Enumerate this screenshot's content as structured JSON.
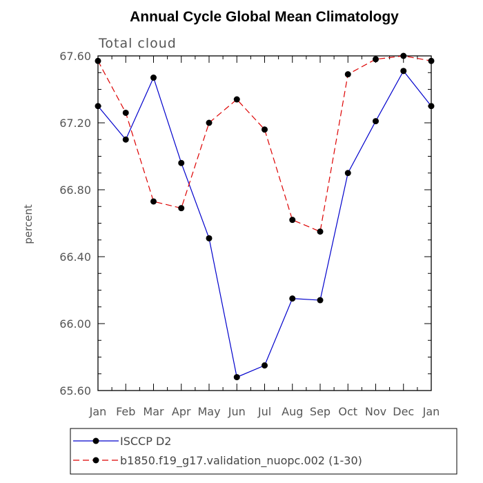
{
  "chart_data": {
    "type": "line",
    "title": "Annual Cycle Global Mean Climatology",
    "subtitle": "Total cloud",
    "ylabel": "percent",
    "xlabel": "",
    "categories": [
      "Jan",
      "Feb",
      "Mar",
      "Apr",
      "May",
      "Jun",
      "Jul",
      "Aug",
      "Sep",
      "Oct",
      "Nov",
      "Dec",
      "Jan"
    ],
    "ylim": [
      65.6,
      67.6
    ],
    "yticks": [
      "65.60",
      "66.00",
      "66.40",
      "66.80",
      "67.20",
      "67.60"
    ],
    "grid": false,
    "legend_position": "bottom",
    "series": [
      {
        "name": "ISCCP D2",
        "color": "#0000cc",
        "dash": "solid",
        "values": [
          67.3,
          67.1,
          67.47,
          66.96,
          66.51,
          65.68,
          65.75,
          66.15,
          66.14,
          66.9,
          67.21,
          67.51,
          67.3
        ]
      },
      {
        "name": "b1850.f19_g17.validation_nuopc.002 (1-30)",
        "color": "#dd0000",
        "dash": "dashed",
        "values": [
          67.57,
          67.26,
          66.73,
          66.69,
          67.2,
          67.34,
          67.16,
          66.62,
          66.55,
          67.49,
          67.58,
          67.6,
          67.57
        ]
      }
    ]
  }
}
